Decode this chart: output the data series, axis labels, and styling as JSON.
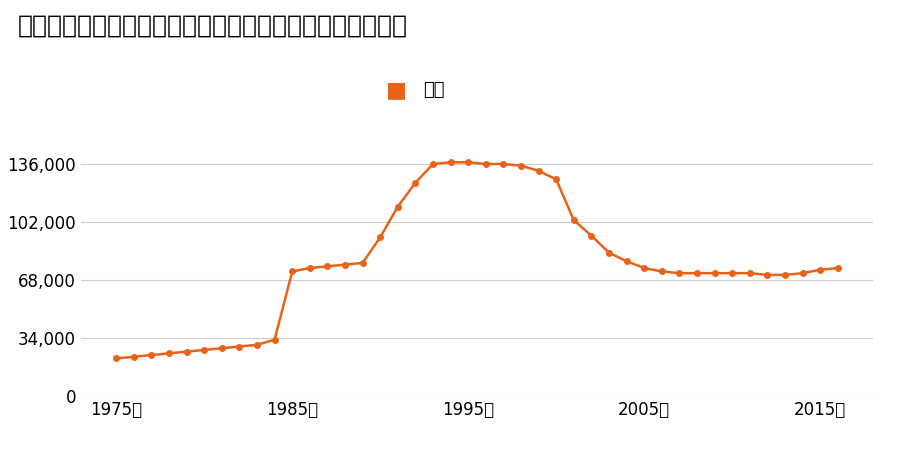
{
  "title": "福岡県福岡市南区大字下日佐字屋敷前６４番４の地価推移",
  "legend_label": "価格",
  "years": [
    1975,
    1976,
    1977,
    1978,
    1979,
    1980,
    1981,
    1982,
    1983,
    1984,
    1985,
    1986,
    1987,
    1988,
    1989,
    1990,
    1991,
    1992,
    1993,
    1994,
    1995,
    1996,
    1997,
    1998,
    1999,
    2000,
    2001,
    2002,
    2003,
    2004,
    2005,
    2006,
    2007,
    2008,
    2009,
    2010,
    2011,
    2012,
    2013,
    2014,
    2015,
    2016
  ],
  "prices": [
    22000,
    23000,
    24000,
    25000,
    26000,
    27000,
    28000,
    29000,
    30000,
    33000,
    73000,
    75000,
    76000,
    77000,
    78000,
    93000,
    111000,
    125000,
    136000,
    137000,
    137000,
    136000,
    136000,
    135000,
    132000,
    127000,
    103000,
    94000,
    84000,
    79000,
    75000,
    73000,
    72000,
    72000,
    72000,
    72000,
    72000,
    71000,
    71000,
    72000,
    74000,
    75000
  ],
  "line_color": "#E8621A",
  "marker_color": "#E8621A",
  "background_color": "#ffffff",
  "grid_color": "#cccccc",
  "ylim": [
    0,
    153000
  ],
  "yticks": [
    0,
    34000,
    68000,
    102000,
    136000
  ],
  "xtick_labels": [
    "1975年",
    "1985年",
    "1995年",
    "2005年",
    "2015年"
  ],
  "xtick_positions": [
    1975,
    1985,
    1995,
    2005,
    2015
  ],
  "title_fontsize": 18,
  "legend_fontsize": 13,
  "tick_fontsize": 12
}
